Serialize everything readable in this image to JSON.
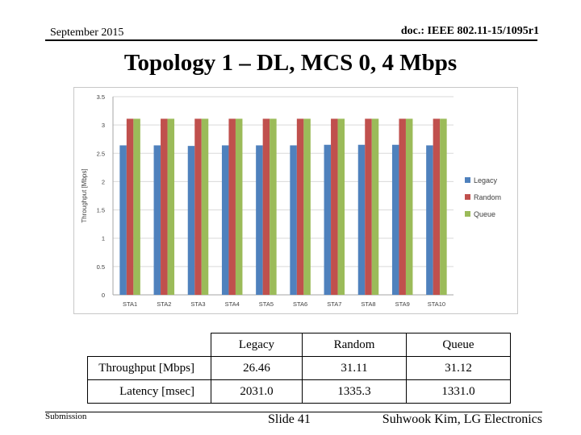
{
  "header": {
    "date": "September 2015",
    "doc": "doc.: IEEE 802.11-15/1095r1"
  },
  "title": "Topology 1 – DL, MCS 0, 4 Mbps",
  "chart_data": {
    "type": "bar",
    "title": "",
    "xlabel": "",
    "ylabel": "Throughput [Mbps]",
    "ylim": [
      0,
      3.5
    ],
    "yticks": [
      "0",
      "0.5",
      "1",
      "1.5",
      "2",
      "2.5",
      "3",
      "3.5"
    ],
    "categories": [
      "STA1",
      "STA2",
      "STA3",
      "STA4",
      "STA5",
      "STA6",
      "STA7",
      "STA8",
      "STA9",
      "STA10"
    ],
    "grid": true,
    "legend": "right",
    "series": [
      {
        "name": "Legacy",
        "color": "#4f81bd",
        "values": [
          2.64,
          2.64,
          2.63,
          2.64,
          2.64,
          2.64,
          2.65,
          2.65,
          2.65,
          2.64
        ]
      },
      {
        "name": "Random",
        "color": "#c0504d",
        "values": [
          3.11,
          3.11,
          3.11,
          3.11,
          3.11,
          3.11,
          3.11,
          3.11,
          3.11,
          3.11
        ]
      },
      {
        "name": "Queue",
        "color": "#9bbb59",
        "values": [
          3.11,
          3.11,
          3.11,
          3.11,
          3.11,
          3.11,
          3.11,
          3.11,
          3.11,
          3.11
        ]
      }
    ]
  },
  "table": {
    "columns": [
      "Legacy",
      "Random",
      "Queue"
    ],
    "rows": [
      {
        "label": "Throughput [Mbps]",
        "values": [
          "26.46",
          "31.11",
          "31.12"
        ]
      },
      {
        "label": "Latency [msec]",
        "values": [
          "2031.0",
          "1335.3",
          "1331.0"
        ]
      }
    ]
  },
  "footer": {
    "submission": "Submission",
    "slide": "Slide 41",
    "author": "Suhwook Kim, LG Electronics"
  }
}
